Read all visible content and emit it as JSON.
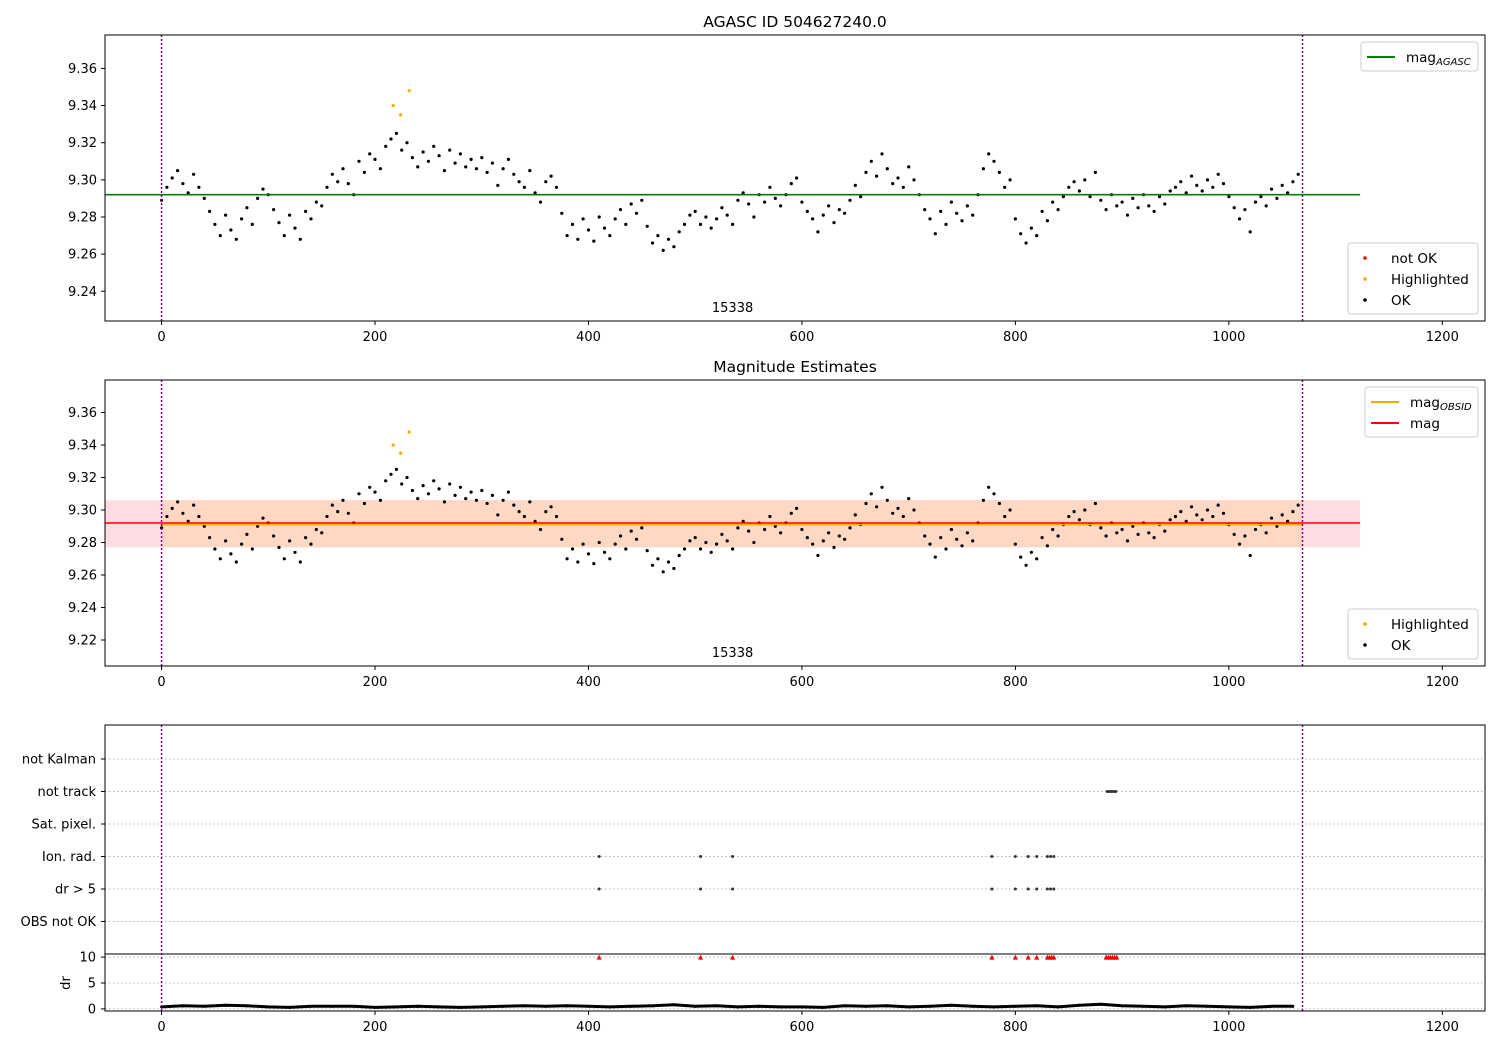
{
  "chart_data": [
    {
      "type": "scatter",
      "title": "AGASC ID 504627240.0",
      "xlim": [
        -53,
        1240
      ],
      "ylim": [
        9.224,
        9.378
      ],
      "xticks": [
        "0",
        "200",
        "400",
        "600",
        "800",
        "1000",
        "1200"
      ],
      "yticks": [
        "9.24",
        "9.26",
        "9.28",
        "9.30",
        "9.32",
        "9.34",
        "9.36"
      ],
      "obsid_label": "15338",
      "obs_start": 0,
      "obs_end": 1069,
      "mag_agasc": 9.292,
      "mag_agasc_xrange": [
        -53,
        1123
      ],
      "legend_top": [
        {
          "label": "mag",
          "sub": "AGASC",
          "color": "#008000"
        }
      ],
      "legend_bottom": [
        {
          "label": "not OK",
          "color": "#ff0000"
        },
        {
          "label": "Highlighted",
          "color": "#ffa500"
        },
        {
          "label": "OK",
          "color": "#000000"
        }
      ]
    },
    {
      "type": "scatter",
      "title": "Magnitude Estimates",
      "xlim": [
        -53,
        1240
      ],
      "ylim": [
        9.204,
        9.38
      ],
      "xticks": [
        "0",
        "200",
        "400",
        "600",
        "800",
        "1000",
        "1200"
      ],
      "yticks": [
        "9.22",
        "9.24",
        "9.26",
        "9.28",
        "9.30",
        "9.32",
        "9.34",
        "9.36"
      ],
      "obsid_label": "15338",
      "mag_obsid": 9.291,
      "mag": 9.292,
      "band_obsid": [
        9.277,
        9.306
      ],
      "band_mag": [
        9.277,
        9.306
      ],
      "legend_top": [
        {
          "label": "mag",
          "sub": "OBSID",
          "color": "#ffa500"
        },
        {
          "label": "mag",
          "sub": "",
          "color": "#ff0000"
        }
      ],
      "legend_bottom": [
        {
          "label": "Highlighted",
          "color": "#ffa500"
        },
        {
          "label": "OK",
          "color": "#000000"
        }
      ]
    },
    {
      "type": "scatter",
      "title": "",
      "categories": [
        "not Kalman",
        "not track",
        "Sat. pixel.",
        "Ion. rad.",
        "dr > 5",
        "OBS not OK"
      ],
      "flags": {
        "not track": [
          886,
          888,
          890,
          892,
          894
        ],
        "Ion. rad.": [
          410,
          505,
          535,
          778,
          800,
          812,
          820,
          830,
          833,
          836
        ],
        "dr > 5": [
          410,
          505,
          535,
          778,
          800,
          812,
          820,
          830,
          833,
          836
        ]
      },
      "dr_ylabel": "dr",
      "dr_yticks": [
        "0",
        "5",
        "10"
      ],
      "dr_ylim": [
        -0.4,
        10.6
      ],
      "dr_clipped_x": [
        410,
        505,
        535,
        778,
        800,
        812,
        820,
        830,
        832,
        834,
        836,
        885,
        887,
        889,
        891,
        893,
        895
      ],
      "dr_clip_value": 10,
      "dr_step": 20,
      "dr_values": [
        0.4,
        0.6,
        0.5,
        0.7,
        0.6,
        0.4,
        0.3,
        0.5,
        0.5,
        0.5,
        0.3,
        0.4,
        0.5,
        0.4,
        0.3,
        0.4,
        0.5,
        0.6,
        0.5,
        0.6,
        0.5,
        0.4,
        0.5,
        0.6,
        0.8,
        0.5,
        0.6,
        0.4,
        0.5,
        0.4,
        0.4,
        0.3,
        0.6,
        0.5,
        0.6,
        0.4,
        0.5,
        0.7,
        0.5,
        0.4,
        0.5,
        0.6,
        0.4,
        0.7,
        0.9,
        0.6,
        0.5,
        0.4,
        0.6,
        0.5,
        0.4,
        0.3,
        0.5,
        0.5
      ]
    }
  ],
  "series": {
    "x_start": 0,
    "x_step": 5,
    "ok_values": [
      9.289,
      9.296,
      9.301,
      9.305,
      9.298,
      9.293,
      9.303,
      9.296,
      9.29,
      9.283,
      9.276,
      9.27,
      9.281,
      9.273,
      9.268,
      9.279,
      9.285,
      9.276,
      9.29,
      9.295,
      9.292,
      9.284,
      9.277,
      9.27,
      9.281,
      9.274,
      9.268,
      9.283,
      9.279,
      9.288,
      9.286,
      9.296,
      9.303,
      9.299,
      9.306,
      9.298,
      9.292,
      9.31,
      9.304,
      9.314,
      9.311,
      9.306,
      9.318,
      9.322,
      9.325,
      9.316,
      9.32,
      9.312,
      9.307,
      9.315,
      9.31,
      9.318,
      9.313,
      9.305,
      9.316,
      9.309,
      9.314,
      9.307,
      9.311,
      9.306,
      9.312,
      9.304,
      9.309,
      9.297,
      9.306,
      9.311,
      9.303,
      9.299,
      9.296,
      9.305,
      9.293,
      9.288,
      9.299,
      9.302,
      9.296,
      9.282,
      9.27,
      9.276,
      9.268,
      9.279,
      9.273,
      9.267,
      9.28,
      9.274,
      9.27,
      9.279,
      9.284,
      9.276,
      9.287,
      9.282,
      9.289,
      9.275,
      9.266,
      9.27,
      9.262,
      9.268,
      9.264,
      9.272,
      9.276,
      9.281,
      9.283,
      9.276,
      9.28,
      9.274,
      9.279,
      9.285,
      9.281,
      9.276,
      9.289,
      9.293,
      9.287,
      9.28,
      9.292,
      9.288,
      9.296,
      9.29,
      9.286,
      9.292,
      9.298,
      9.301,
      9.288,
      9.283,
      9.279,
      9.272,
      9.281,
      9.286,
      9.277,
      9.284,
      9.282,
      9.289,
      9.297,
      9.291,
      9.304,
      9.31,
      9.302,
      9.314,
      9.306,
      9.298,
      9.301,
      9.296,
      9.307,
      9.3,
      9.292,
      9.284,
      9.279,
      9.271,
      9.283,
      9.276,
      9.288,
      9.282,
      9.278,
      9.286,
      9.281,
      9.292,
      9.306,
      9.314,
      9.31,
      9.304,
      9.296,
      9.3,
      9.279,
      9.271,
      9.266,
      9.274,
      9.27,
      9.283,
      9.278,
      9.288,
      9.284,
      9.291,
      9.296,
      9.299,
      9.294,
      9.3,
      9.291,
      9.304,
      9.289,
      9.284,
      9.292,
      9.286,
      9.288,
      9.281,
      9.29,
      9.285,
      9.292,
      9.286,
      9.283,
      9.291,
      9.287,
      9.294,
      9.296,
      9.299,
      9.293,
      9.302,
      9.297,
      9.294,
      9.3,
      9.296,
      9.303,
      9.298,
      9.291,
      9.285,
      9.279,
      9.284,
      9.272,
      9.288,
      9.291,
      9.286,
      9.295,
      9.29,
      9.297,
      9.293,
      9.299,
      9.303
    ],
    "highlighted": [
      [
        217,
        9.34
      ],
      [
        224,
        9.335
      ],
      [
        232,
        9.348
      ]
    ]
  },
  "colors": {
    "ok": "#000000",
    "highlighted": "#ffa500",
    "not_ok": "#ff0000",
    "agasc": "#008000",
    "obs_line": "#800080",
    "band_mag": "#ffdde2",
    "band_obsid": "#ffd8c4"
  }
}
